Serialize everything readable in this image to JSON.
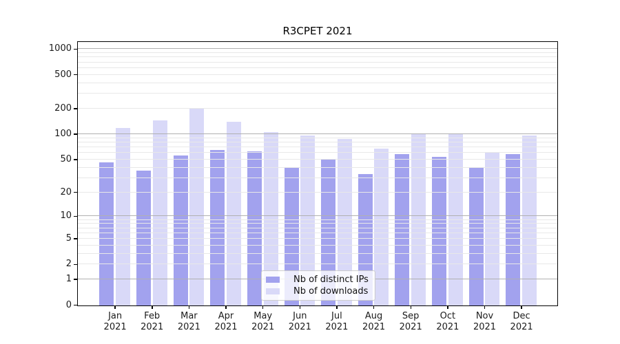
{
  "chart_data": {
    "type": "bar",
    "title": "R3CPET 2021",
    "categories": [
      "Jan 2021",
      "Feb 2021",
      "Mar 2021",
      "Apr 2021",
      "May 2021",
      "Jun 2021",
      "Jul 2021",
      "Aug 2021",
      "Sep 2021",
      "Oct 2021",
      "Nov 2021",
      "Dec 2021"
    ],
    "series": [
      {
        "name": "Nb of distinct IPs",
        "color": "#a2a2ee",
        "values": [
          47,
          37,
          56,
          66,
          63,
          41,
          50,
          34,
          59,
          54,
          40,
          59
        ]
      },
      {
        "name": "Nb of downloads",
        "color": "#d9d9f8",
        "values": [
          120,
          148,
          207,
          141,
          106,
          97,
          89,
          68,
          101,
          101,
          61,
          98
        ]
      }
    ],
    "xlabel": "",
    "ylabel": "",
    "yscale": "log1p (tick position proportional to log10(1+value), linear 0-1 segment at bottom)",
    "yticks": [
      0,
      1,
      2,
      5,
      10,
      20,
      50,
      100,
      200,
      500,
      1000
    ],
    "ylim": [
      0,
      1250
    ],
    "grid": {
      "shown": true,
      "drawn_above_bars": true,
      "major_values": [
        1,
        10,
        100,
        1000
      ],
      "minor_values": [
        2,
        3,
        4,
        5,
        6,
        7,
        8,
        9,
        20,
        30,
        40,
        50,
        60,
        70,
        80,
        90,
        200,
        300,
        400,
        500,
        600,
        700,
        800,
        900
      ],
      "major_color": "#b0b0b0",
      "minor_color": "#e8e8e8"
    },
    "legend_position": "bottom-center"
  },
  "colors": {
    "background": "#ffffff",
    "axis": "#000000",
    "tick_text": "#1a1a1a"
  }
}
